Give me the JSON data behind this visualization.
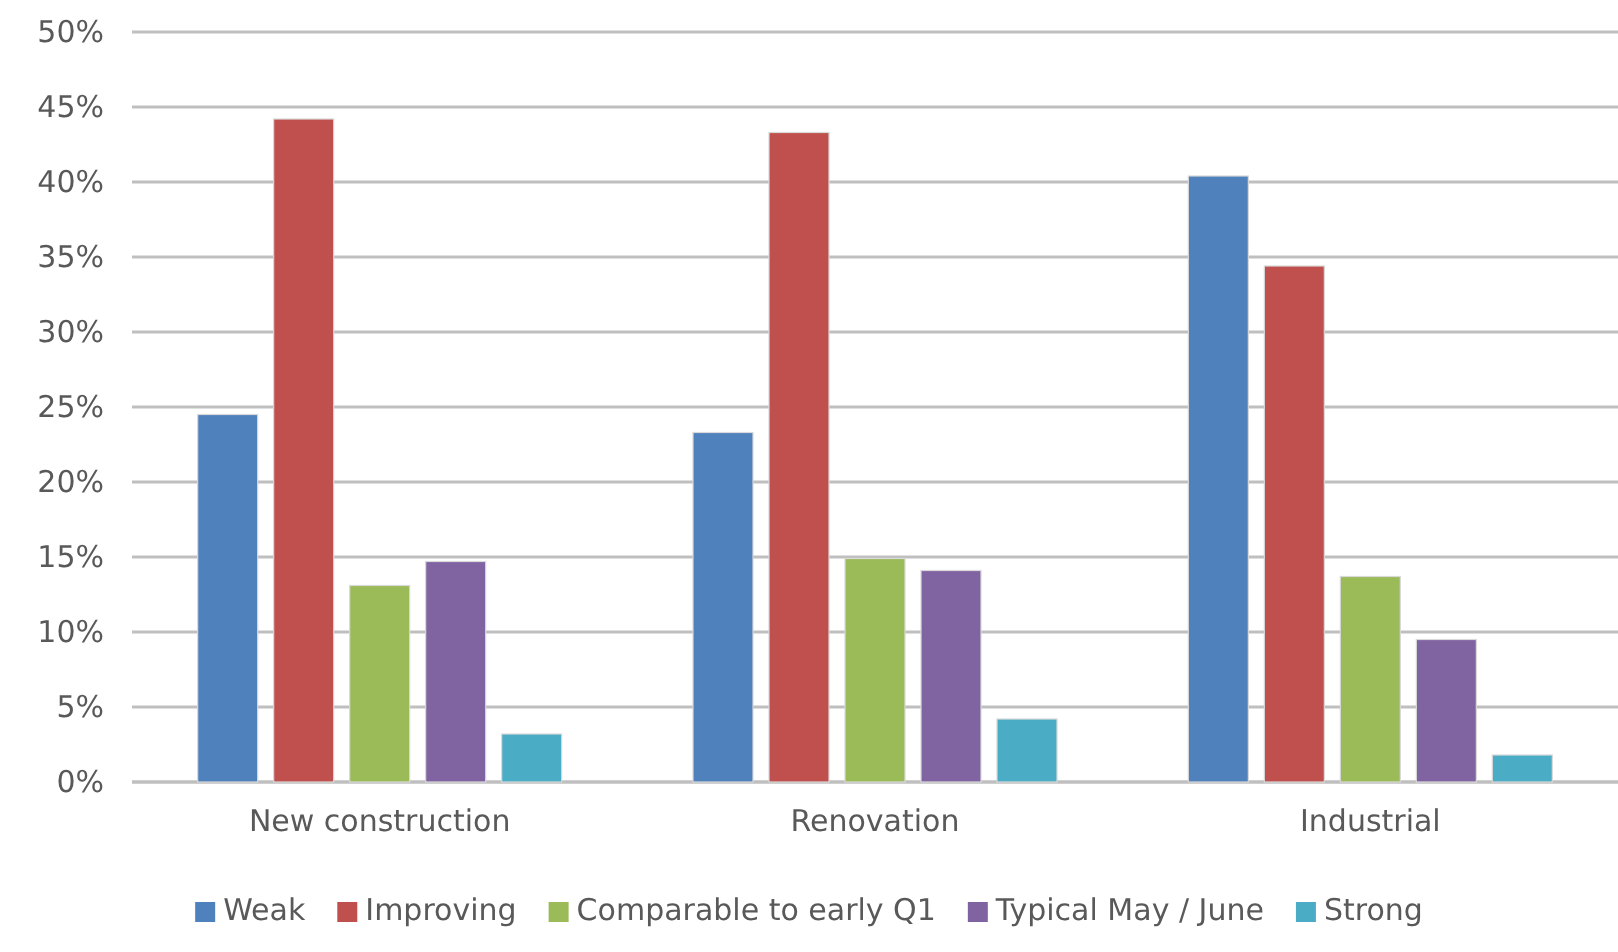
{
  "chart_data": {
    "type": "bar",
    "categories": [
      "New construction",
      "Renovation",
      "Industrial"
    ],
    "series": [
      {
        "name": "Weak",
        "color": "#4f81bd",
        "values": [
          24.5,
          23.3,
          40.4
        ]
      },
      {
        "name": "Improving",
        "color": "#c0504d",
        "values": [
          44.2,
          43.3,
          34.4
        ]
      },
      {
        "name": "Comparable to early Q1",
        "color": "#9bbb59",
        "values": [
          13.1,
          14.9,
          13.7
        ]
      },
      {
        "name": "Typical May / June",
        "color": "#8064a2",
        "values": [
          14.7,
          14.1,
          9.5
        ]
      },
      {
        "name": "Strong",
        "color": "#4bacc6",
        "values": [
          3.2,
          4.2,
          1.8
        ]
      }
    ],
    "ylim": [
      0,
      50
    ],
    "yticks": [
      {
        "value": 0,
        "label": "0%"
      },
      {
        "value": 5,
        "label": "5%"
      },
      {
        "value": 10,
        "label": "10%"
      },
      {
        "value": 15,
        "label": "15%"
      },
      {
        "value": 20,
        "label": "20%"
      },
      {
        "value": 25,
        "label": "25%"
      },
      {
        "value": 30,
        "label": "30%"
      },
      {
        "value": 35,
        "label": "35%"
      },
      {
        "value": 40,
        "label": "40%"
      },
      {
        "value": 45,
        "label": "45%"
      },
      {
        "value": 50,
        "label": "50%"
      }
    ],
    "grid": "y",
    "legend": "bottom"
  }
}
